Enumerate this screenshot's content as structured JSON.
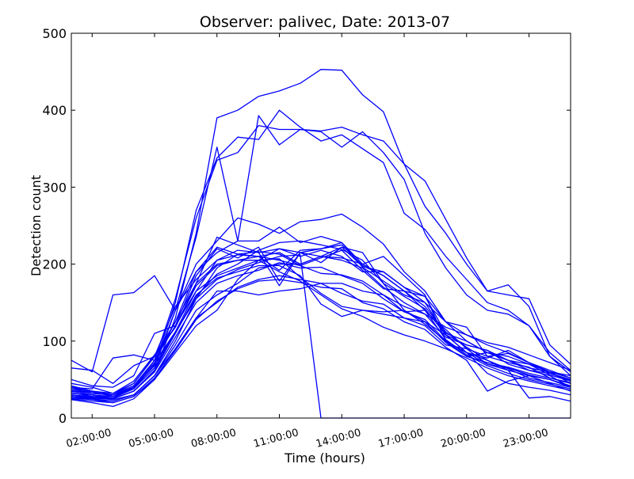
{
  "chart_data": {
    "type": "line",
    "title": "Observer: palivec, Date: 2013-07",
    "xlabel": "Time (hours)",
    "ylabel": "Detection count",
    "x_ticks": [
      "02:00:00",
      "05:00:00",
      "08:00:00",
      "11:00:00",
      "14:00:00",
      "17:00:00",
      "20:00:00",
      "23:00:00"
    ],
    "x_tick_hours": [
      2,
      5,
      8,
      11,
      14,
      17,
      20,
      23
    ],
    "xlim_hours": [
      1,
      25
    ],
    "y_ticks": [
      0,
      100,
      200,
      300,
      400,
      500
    ],
    "ylim": [
      0,
      500
    ],
    "grid": false,
    "line_color": "#0000ff",
    "x_hours": [
      1,
      2,
      3,
      4,
      5,
      6,
      7,
      8,
      9,
      10,
      11,
      12,
      13,
      14,
      15,
      16,
      17,
      18,
      19,
      20,
      21,
      22,
      23,
      24,
      25
    ],
    "series": [
      {
        "values": [
          30,
          28,
          25,
          35,
          60,
          130,
          240,
          390,
          400,
          418,
          425,
          435,
          453,
          452,
          420,
          398,
          330,
          275,
          240,
          200,
          165,
          160,
          155,
          95,
          70
        ]
      },
      {
        "values": [
          35,
          30,
          28,
          40,
          70,
          150,
          270,
          338,
          365,
          362,
          400,
          378,
          360,
          368,
          350,
          332,
          266,
          245,
          210,
          180,
          150,
          140,
          120,
          80,
          60
        ]
      },
      {
        "values": [
          28,
          26,
          30,
          38,
          65,
          140,
          235,
          352,
          230,
          393,
          355,
          375,
          373,
          378,
          368,
          360,
          330,
          308,
          258,
          208,
          165,
          173,
          145,
          80,
          55
        ]
      },
      {
        "values": [
          40,
          32,
          30,
          42,
          75,
          155,
          260,
          335,
          345,
          380,
          375,
          375,
          372,
          352,
          372,
          345,
          310,
          240,
          195,
          160,
          140,
          135,
          120,
          85,
          62
        ]
      },
      {
        "values": [
          32,
          30,
          26,
          38,
          70,
          140,
          200,
          230,
          260,
          252,
          240,
          255,
          258,
          265,
          248,
          226,
          190,
          165,
          125,
          108,
          95,
          85,
          72,
          60,
          52
        ]
      },
      {
        "values": [
          75,
          60,
          160,
          163,
          185,
          140,
          190,
          215,
          230,
          230,
          248,
          228,
          236,
          228,
          200,
          210,
          185,
          160,
          100,
          80,
          85,
          75,
          65,
          60,
          55
        ]
      },
      {
        "values": [
          65,
          62,
          45,
          68,
          80,
          118,
          175,
          235,
          225,
          215,
          220,
          215,
          210,
          205,
          195,
          170,
          150,
          135,
          118,
          108,
          98,
          92,
          82,
          72,
          62
        ]
      },
      {
        "values": [
          40,
          38,
          78,
          82,
          75,
          120,
          185,
          220,
          208,
          222,
          178,
          215,
          202,
          222,
          215,
          175,
          140,
          125,
          108,
          85,
          78,
          88,
          72,
          58,
          50
        ]
      },
      {
        "values": [
          50,
          42,
          40,
          55,
          110,
          120,
          165,
          205,
          218,
          215,
          172,
          215,
          220,
          225,
          198,
          185,
          165,
          140,
          115,
          90,
          80,
          72,
          66,
          52,
          46
        ]
      },
      {
        "values": [
          28,
          25,
          22,
          30,
          55,
          100,
          155,
          195,
          213,
          216,
          213,
          198,
          208,
          218,
          192,
          168,
          165,
          158,
          110,
          100,
          85,
          75,
          70,
          60,
          45
        ]
      },
      {
        "values": [
          38,
          32,
          30,
          45,
          80,
          145,
          180,
          205,
          212,
          210,
          192,
          218,
          220,
          228,
          196,
          178,
          160,
          150,
          125,
          100,
          85,
          80,
          70,
          56,
          48
        ]
      },
      {
        "values": [
          33,
          28,
          26,
          40,
          75,
          125,
          190,
          222,
          213,
          210,
          215,
          200,
          210,
          222,
          197,
          190,
          170,
          150,
          108,
          85,
          75,
          62,
          55,
          50,
          42
        ]
      },
      {
        "values": [
          45,
          40,
          32,
          48,
          82,
          118,
          172,
          198,
          205,
          205,
          220,
          210,
          218,
          210,
          190,
          190,
          170,
          158,
          125,
          118,
          80,
          84,
          72,
          62,
          52
        ]
      },
      {
        "values": [
          35,
          30,
          25,
          35,
          62,
          110,
          158,
          187,
          200,
          218,
          228,
          230,
          225,
          219,
          205,
          175,
          158,
          142,
          108,
          95,
          88,
          75,
          62,
          58,
          49
        ]
      },
      {
        "values": [
          30,
          26,
          24,
          30,
          55,
          95,
          140,
          160,
          175,
          195,
          200,
          200,
          210,
          208,
          200,
          185,
          165,
          145,
          112,
          92,
          75,
          64,
          52,
          46,
          40
        ]
      },
      {
        "values": [
          26,
          24,
          20,
          28,
          50,
          90,
          130,
          165,
          165,
          160,
          165,
          168,
          175,
          175,
          165,
          160,
          138,
          140,
          102,
          82,
          68,
          58,
          50,
          44,
          38
        ]
      },
      {
        "values": [
          42,
          35,
          30,
          42,
          72,
          112,
          165,
          185,
          195,
          205,
          207,
          183,
          162,
          145,
          140,
          135,
          130,
          125,
          98,
          80,
          72,
          66,
          58,
          52,
          45
        ]
      },
      {
        "values": [
          38,
          34,
          28,
          38,
          65,
          110,
          160,
          182,
          190,
          198,
          198,
          185,
          148,
          132,
          140,
          138,
          140,
          122,
          100,
          85,
          70,
          65,
          56,
          50,
          40
        ]
      },
      {
        "values": [
          24,
          20,
          15,
          25,
          50,
          85,
          120,
          140,
          180,
          205,
          190,
          178,
          160,
          142,
          132,
          118,
          108,
          100,
          90,
          78,
          65,
          55,
          48,
          42,
          36
        ]
      },
      {
        "values": [
          28,
          24,
          22,
          30,
          55,
          90,
          130,
          150,
          170,
          180,
          185,
          180,
          175,
          162,
          152,
          148,
          130,
          120,
          95,
          90,
          70,
          62,
          26,
          28,
          22
        ]
      },
      {
        "values": [
          36,
          32,
          30,
          40,
          68,
          112,
          155,
          180,
          193,
          202,
          210,
          212,
          0,
          0,
          0,
          0,
          0,
          0,
          0,
          0,
          0,
          0,
          0,
          0,
          0
        ]
      },
      {
        "values": [
          40,
          35,
          32,
          45,
          80,
          125,
          175,
          200,
          205,
          210,
          205,
          198,
          188,
          186,
          178,
          160,
          145,
          135,
          105,
          95,
          88,
          70,
          62,
          55,
          40
        ]
      },
      {
        "values": [
          30,
          27,
          25,
          35,
          60,
          105,
          150,
          175,
          185,
          192,
          202,
          195,
          196,
          185,
          175,
          155,
          138,
          128,
          100,
          85,
          58,
          45,
          40,
          36,
          30
        ]
      },
      {
        "values": [
          25,
          22,
          20,
          28,
          52,
          88,
          128,
          152,
          168,
          178,
          180,
          176,
          170,
          168,
          150,
          142,
          125,
          115,
          92,
          75,
          35,
          48,
          55,
          45,
          35
        ]
      }
    ]
  }
}
